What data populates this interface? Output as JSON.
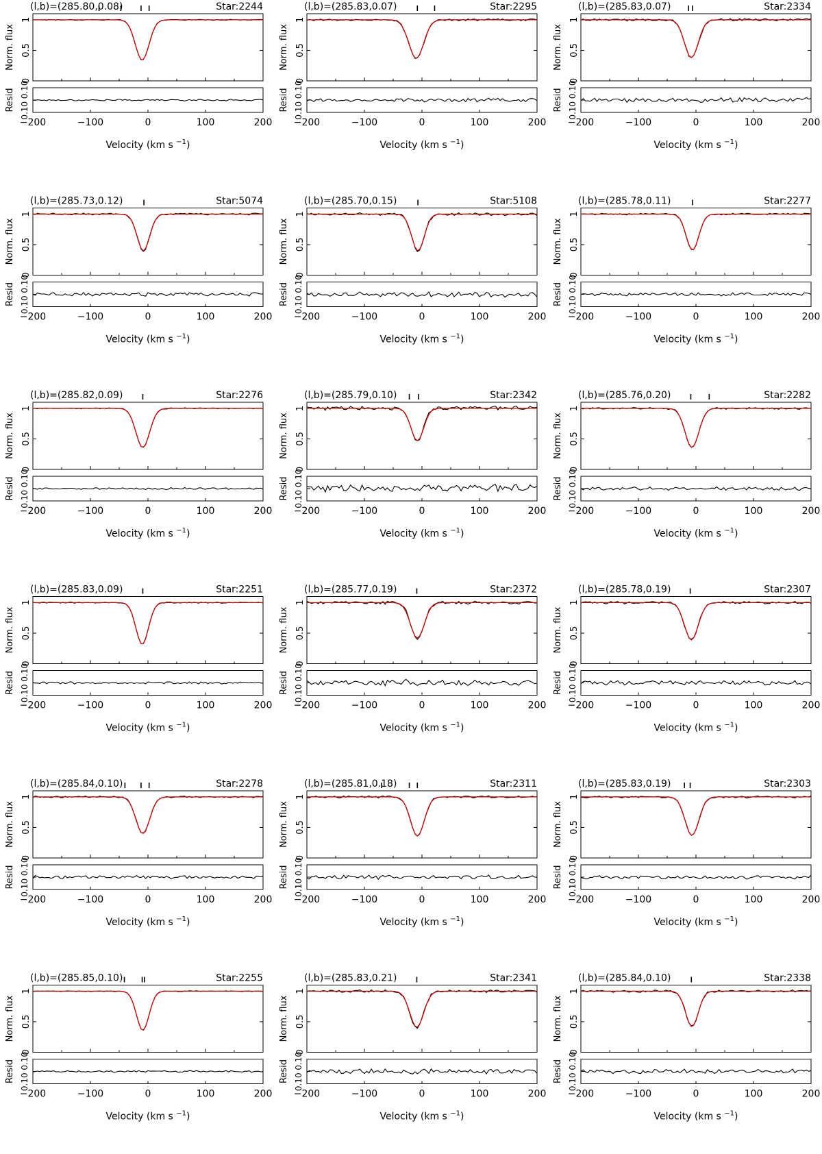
{
  "figure": {
    "flux_label": "Norm. flux",
    "resid_label": "Resid",
    "xlabel_main": "Velocity (km s",
    "xlabel_sup": "−1",
    "xlabel_close": ")",
    "x_tick_labels": [
      "−200",
      "−100",
      "0",
      "100",
      "200"
    ],
    "flux_tick_labels": [
      "1",
      "0.5",
      "0"
    ],
    "resid_tick_labels": [
      "0.10",
      "0.10"
    ],
    "model_color": "#cc0000",
    "data_color": "#000000"
  },
  "chart_data": [
    {
      "type": "line",
      "coords": "(l,b)=(285.80,0.08)",
      "star": "Star:2244",
      "xlim": [
        -200,
        200
      ],
      "flux_ylim": [
        0,
        1.1
      ],
      "resid_ylim": [
        -0.1,
        0.1
      ],
      "line_center": -10,
      "line_width": 12,
      "line_depth": 0.66,
      "noise": 0.006,
      "component_ticks": [
        -85,
        -47,
        -12,
        2
      ],
      "series": [
        {
          "values": "observed"
        },
        {
          "values": "model"
        }
      ]
    },
    {
      "type": "line",
      "coords": "(l,b)=(285.83,0.07)",
      "star": "Star:2295",
      "xlim": [
        -200,
        200
      ],
      "flux_ylim": [
        0,
        1.1
      ],
      "resid_ylim": [
        -0.1,
        0.1
      ],
      "line_center": -10,
      "line_width": 13,
      "line_depth": 0.63,
      "noise": 0.012,
      "component_ticks": [
        -8,
        22
      ],
      "series": [
        {
          "values": "observed"
        },
        {
          "values": "model"
        }
      ]
    },
    {
      "type": "line",
      "coords": "(l,b)=(285.83,0.07)",
      "star": "Star:2334",
      "xlim": [
        -200,
        200
      ],
      "flux_ylim": [
        0,
        1.1
      ],
      "resid_ylim": [
        -0.1,
        0.1
      ],
      "line_center": -8,
      "line_width": 12,
      "line_depth": 0.62,
      "noise": 0.016,
      "component_ticks": [
        -13,
        -6
      ],
      "series": [
        {
          "values": "observed"
        },
        {
          "values": "model"
        }
      ]
    },
    {
      "type": "line",
      "coords": "(l,b)=(285.73,0.12)",
      "star": "Star:5074",
      "xlim": [
        -200,
        200
      ],
      "flux_ylim": [
        0,
        1.1
      ],
      "resid_ylim": [
        -0.1,
        0.1
      ],
      "line_center": -8,
      "line_width": 11,
      "line_depth": 0.6,
      "noise": 0.012,
      "component_ticks": [
        -7
      ],
      "series": [
        {
          "values": "observed"
        },
        {
          "values": "model"
        }
      ]
    },
    {
      "type": "line",
      "coords": "(l,b)=(285.70,0.15)",
      "star": "Star:5108",
      "xlim": [
        -200,
        200
      ],
      "flux_ylim": [
        0,
        1.1
      ],
      "resid_ylim": [
        -0.1,
        0.1
      ],
      "line_center": -7,
      "line_width": 11,
      "line_depth": 0.6,
      "noise": 0.018,
      "component_ticks": [
        -7
      ],
      "series": [
        {
          "values": "observed"
        },
        {
          "values": "model"
        }
      ]
    },
    {
      "type": "line",
      "coords": "(l,b)=(285.78,0.11)",
      "star": "Star:2277",
      "xlim": [
        -200,
        200
      ],
      "flux_ylim": [
        0,
        1.1
      ],
      "resid_ylim": [
        -0.1,
        0.1
      ],
      "line_center": -6,
      "line_width": 11,
      "line_depth": 0.59,
      "noise": 0.011,
      "component_ticks": [
        -6
      ],
      "series": [
        {
          "values": "observed"
        },
        {
          "values": "model"
        }
      ]
    },
    {
      "type": "line",
      "coords": "(l,b)=(285.82,0.09)",
      "star": "Star:2276",
      "xlim": [
        -200,
        200
      ],
      "flux_ylim": [
        0,
        1.1
      ],
      "resid_ylim": [
        -0.1,
        0.1
      ],
      "line_center": -9,
      "line_width": 12,
      "line_depth": 0.64,
      "noise": 0.007,
      "component_ticks": [
        -9
      ],
      "series": [
        {
          "values": "observed"
        },
        {
          "values": "model"
        }
      ]
    },
    {
      "type": "line",
      "coords": "(l,b)=(285.79,0.10)",
      "star": "Star:2342",
      "xlim": [
        -200,
        200
      ],
      "flux_ylim": [
        0,
        1.1
      ],
      "resid_ylim": [
        -0.1,
        0.1
      ],
      "line_center": -8,
      "line_width": 11,
      "line_depth": 0.53,
      "noise": 0.028,
      "component_ticks": [
        -22,
        -6
      ],
      "series": [
        {
          "values": "observed"
        },
        {
          "values": "model"
        }
      ]
    },
    {
      "type": "line",
      "coords": "(l,b)=(285.76,0.20)",
      "star": "Star:2282",
      "xlim": [
        -200,
        200
      ],
      "flux_ylim": [
        0,
        1.1
      ],
      "resid_ylim": [
        -0.1,
        0.1
      ],
      "line_center": -7,
      "line_width": 12,
      "line_depth": 0.64,
      "noise": 0.012,
      "component_ticks": [
        -9,
        23
      ],
      "series": [
        {
          "values": "observed"
        },
        {
          "values": "model"
        }
      ]
    },
    {
      "type": "line",
      "coords": "(l,b)=(285.83,0.09)",
      "star": "Star:2251",
      "xlim": [
        -200,
        200
      ],
      "flux_ylim": [
        0,
        1.1
      ],
      "resid_ylim": [
        -0.1,
        0.1
      ],
      "line_center": -10,
      "line_width": 11,
      "line_depth": 0.68,
      "noise": 0.007,
      "component_ticks": [
        -9
      ],
      "series": [
        {
          "values": "observed"
        },
        {
          "values": "model"
        }
      ]
    },
    {
      "type": "line",
      "coords": "(l,b)=(285.77,0.19)",
      "star": "Star:2372",
      "xlim": [
        -200,
        200
      ],
      "flux_ylim": [
        0,
        1.1
      ],
      "resid_ylim": [
        -0.1,
        0.1
      ],
      "line_center": -8,
      "line_width": 12,
      "line_depth": 0.58,
      "noise": 0.022,
      "component_ticks": [
        -9
      ],
      "series": [
        {
          "values": "observed"
        },
        {
          "values": "model"
        }
      ]
    },
    {
      "type": "line",
      "coords": "(l,b)=(285.78,0.19)",
      "star": "Star:2307",
      "xlim": [
        -200,
        200
      ],
      "flux_ylim": [
        0,
        1.1
      ],
      "resid_ylim": [
        -0.1,
        0.1
      ],
      "line_center": -8,
      "line_width": 12,
      "line_depth": 0.61,
      "noise": 0.015,
      "component_ticks": [
        -10
      ],
      "series": [
        {
          "values": "observed"
        },
        {
          "values": "model"
        }
      ]
    },
    {
      "type": "line",
      "coords": "(l,b)=(285.84,0.10)",
      "star": "Star:2278",
      "xlim": [
        -200,
        200
      ],
      "flux_ylim": [
        0,
        1.1
      ],
      "resid_ylim": [
        -0.1,
        0.1
      ],
      "line_center": -9,
      "line_width": 12,
      "line_depth": 0.6,
      "noise": 0.011,
      "component_ticks": [
        -40,
        -12,
        2
      ],
      "series": [
        {
          "values": "observed"
        },
        {
          "values": "model"
        }
      ]
    },
    {
      "type": "line",
      "coords": "(l,b)=(285.81,0.18)",
      "star": "Star:2311",
      "xlim": [
        -200,
        200
      ],
      "flux_ylim": [
        0,
        1.1
      ],
      "resid_ylim": [
        -0.1,
        0.1
      ],
      "line_center": -8,
      "line_width": 12,
      "line_depth": 0.64,
      "noise": 0.014,
      "component_ticks": [
        -70,
        -22,
        -8
      ],
      "series": [
        {
          "values": "observed"
        },
        {
          "values": "model"
        }
      ]
    },
    {
      "type": "line",
      "coords": "(l,b)=(285.83,0.19)",
      "star": "Star:2303",
      "xlim": [
        -200,
        200
      ],
      "flux_ylim": [
        0,
        1.1
      ],
      "resid_ylim": [
        -0.1,
        0.1
      ],
      "line_center": -7,
      "line_width": 12,
      "line_depth": 0.63,
      "noise": 0.013,
      "component_ticks": [
        -20,
        -10
      ],
      "series": [
        {
          "values": "observed"
        },
        {
          "values": "model"
        }
      ]
    },
    {
      "type": "line",
      "coords": "(l,b)=(285.85,0.10)",
      "star": "Star:2255",
      "xlim": [
        -200,
        200
      ],
      "flux_ylim": [
        0,
        1.1
      ],
      "resid_ylim": [
        -0.1,
        0.1
      ],
      "line_center": -9,
      "line_width": 11,
      "line_depth": 0.64,
      "noise": 0.006,
      "component_ticks": [
        -41,
        -10,
        -6
      ],
      "series": [
        {
          "values": "observed"
        },
        {
          "values": "model"
        }
      ]
    },
    {
      "type": "line",
      "coords": "(l,b)=(285.83,0.21)",
      "star": "Star:2341",
      "xlim": [
        -200,
        200
      ],
      "flux_ylim": [
        0,
        1.1
      ],
      "resid_ylim": [
        -0.1,
        0.1
      ],
      "line_center": -9,
      "line_width": 12,
      "line_depth": 0.59,
      "noise": 0.018,
      "component_ticks": [
        -9
      ],
      "series": [
        {
          "values": "observed"
        },
        {
          "values": "model"
        }
      ]
    },
    {
      "type": "line",
      "coords": "(l,b)=(285.84,0.10)",
      "star": "Star:2338",
      "xlim": [
        -200,
        200
      ],
      "flux_ylim": [
        0,
        1.1
      ],
      "resid_ylim": [
        -0.1,
        0.1
      ],
      "line_center": -7,
      "line_width": 11,
      "line_depth": 0.58,
      "noise": 0.015,
      "component_ticks": [
        -8
      ],
      "series": [
        {
          "values": "observed"
        },
        {
          "values": "model"
        }
      ]
    }
  ]
}
